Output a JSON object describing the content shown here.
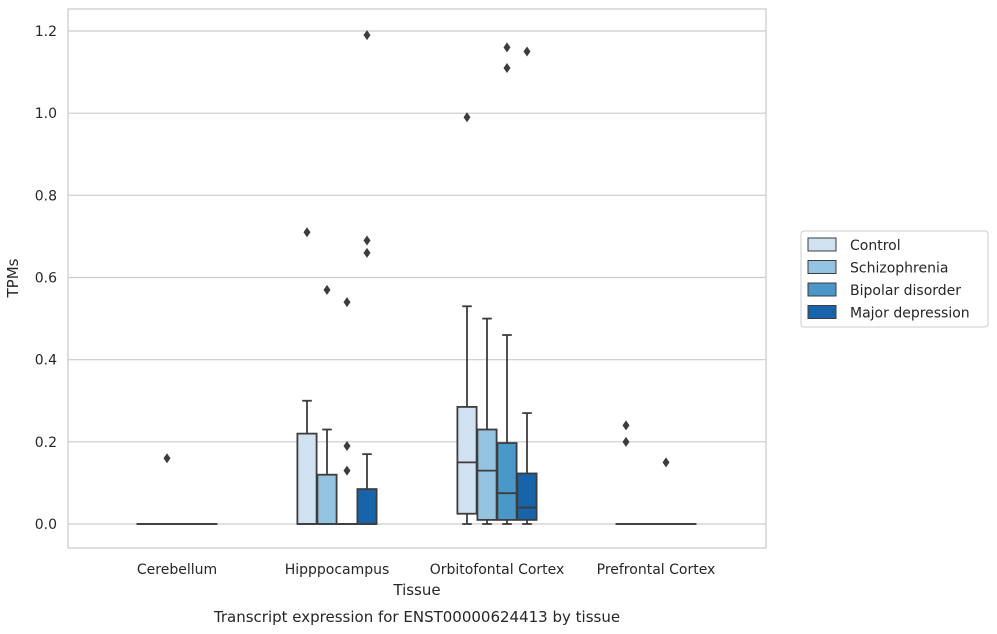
{
  "chart_data": {
    "type": "box",
    "title": "",
    "caption": "Transcript expression for ENST00000624413 by tissue",
    "xlabel": "Tissue",
    "ylabel": "TPMs",
    "ylim": [
      -0.06,
      1.25
    ],
    "yticks": [
      "0.0",
      "0.2",
      "0.4",
      "0.6",
      "0.8",
      "1.0",
      "1.2"
    ],
    "ytick_values": [
      0,
      0.2,
      0.4,
      0.6,
      0.8,
      1.0,
      1.2
    ],
    "grid": true,
    "legend_position": "right",
    "categories": [
      "Cerebellum",
      "Hipppocampus",
      "Orbitofontal Cortex",
      "Prefrontal Cortex"
    ],
    "series": [
      {
        "name": "Control",
        "color": "#d0e1f2",
        "boxes": [
          {
            "min": 0,
            "q1": 0,
            "median": 0,
            "q3": 0,
            "max": 0,
            "outliers": []
          },
          {
            "min": 0,
            "q1": 0,
            "median": 0,
            "q3": 0.22,
            "max": 0.3,
            "outliers": [
              0.71
            ]
          },
          {
            "min": 0,
            "q1": 0.025,
            "median": 0.15,
            "q3": 0.285,
            "max": 0.53,
            "outliers": [
              0.99
            ]
          },
          {
            "min": 0,
            "q1": 0,
            "median": 0,
            "q3": 0,
            "max": 0,
            "outliers": [
              0.2,
              0.24
            ]
          }
        ]
      },
      {
        "name": "Schizophrenia",
        "color": "#94c4df",
        "boxes": [
          {
            "min": 0,
            "q1": 0,
            "median": 0,
            "q3": 0,
            "max": 0,
            "outliers": [
              0.16
            ]
          },
          {
            "min": 0,
            "q1": 0,
            "median": 0,
            "q3": 0.12,
            "max": 0.23,
            "outliers": [
              0.57
            ]
          },
          {
            "min": 0,
            "q1": 0.01,
            "median": 0.13,
            "q3": 0.23,
            "max": 0.5,
            "outliers": []
          },
          {
            "min": 0,
            "q1": 0,
            "median": 0,
            "q3": 0,
            "max": 0,
            "outliers": []
          }
        ]
      },
      {
        "name": "Bipolar disorder",
        "color": "#4a98c9",
        "boxes": [
          {
            "min": 0,
            "q1": 0,
            "median": 0,
            "q3": 0,
            "max": 0,
            "outliers": []
          },
          {
            "min": 0,
            "q1": 0,
            "median": 0,
            "q3": 0,
            "max": 0,
            "outliers": [
              0.13,
              0.19,
              0.54
            ]
          },
          {
            "min": 0,
            "q1": 0.01,
            "median": 0.075,
            "q3": 0.197,
            "max": 0.46,
            "outliers": [
              1.11,
              1.16
            ]
          },
          {
            "min": 0,
            "q1": 0,
            "median": 0,
            "q3": 0,
            "max": 0,
            "outliers": [
              0.15
            ]
          }
        ]
      },
      {
        "name": "Major depression",
        "color": "#1764ab",
        "boxes": [
          {
            "min": 0,
            "q1": 0,
            "median": 0,
            "q3": 0,
            "max": 0,
            "outliers": []
          },
          {
            "min": 0,
            "q1": 0,
            "median": 0,
            "q3": 0.085,
            "max": 0.17,
            "outliers": [
              0.66,
              0.69,
              1.19
            ]
          },
          {
            "min": 0,
            "q1": 0.01,
            "median": 0.04,
            "q3": 0.123,
            "max": 0.27,
            "outliers": [
              1.15
            ]
          },
          {
            "min": 0,
            "q1": 0,
            "median": 0,
            "q3": 0,
            "max": 0,
            "outliers": []
          }
        ]
      }
    ]
  }
}
